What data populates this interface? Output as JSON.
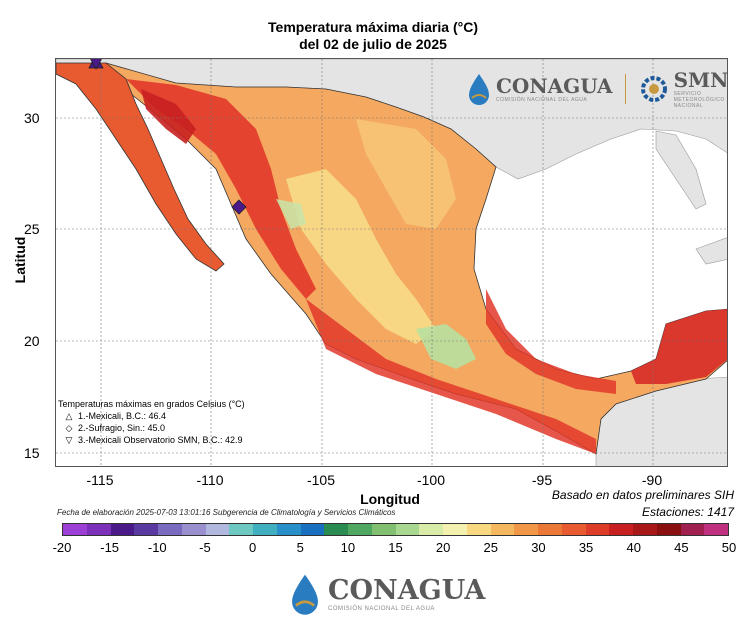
{
  "title_line1": "Temperatura máxima diaria (°C)",
  "title_line2": "del 02 de julio de 2025",
  "axes": {
    "xlabel": "Longitud",
    "ylabel": "Latitud",
    "xticks": [
      "-115",
      "-110",
      "-105",
      "-100",
      "-95",
      "-90"
    ],
    "yticks": [
      "30",
      "25",
      "20",
      "15"
    ],
    "xlim": [
      -117.5,
      -87.0
    ],
    "ylim": [
      14.3,
      32.8
    ]
  },
  "legend": {
    "heading": "Temperaturas máximas en grados Celsius (°C)",
    "items": [
      {
        "symbol": "△",
        "text": "1.-Mexicali, B.C.: 46.4"
      },
      {
        "symbol": "◇",
        "text": "2.-Sufragio, Sin.: 45.0"
      },
      {
        "symbol": "▽",
        "text": "3.-Mexicali Observatorio SMN, B.C.: 42.9"
      }
    ]
  },
  "basado": "Basado en datos preliminares SIH",
  "estaciones": "Estaciones:  1417",
  "fecha": "Fecha de elaboración 2025-07-03 13:01:16 Subgerencia de Climatología y Servicios Climáticos",
  "colorbar": {
    "labels": [
      "-20",
      "-15",
      "-10",
      "-5",
      "0",
      "5",
      "10",
      "15",
      "20",
      "25",
      "30",
      "35",
      "40",
      "45",
      "50"
    ],
    "colors": [
      "#9b3fd6",
      "#7c2fb8",
      "#4a1a8a",
      "#5a3aa0",
      "#7a6ac0",
      "#9a90d0",
      "#b0b8e0",
      "#6cc8c0",
      "#40b0c0",
      "#2890c8",
      "#1a70c0",
      "#2a8c50",
      "#50a860",
      "#80c070",
      "#a8d890",
      "#d8eca8",
      "#f4f0b0",
      "#f8d880",
      "#f4b860",
      "#f09848",
      "#ec7838",
      "#e85a30",
      "#dc3c28",
      "#c82020",
      "#a81818",
      "#8a1010",
      "#a02050",
      "#c03080"
    ]
  },
  "markers": [
    {
      "name": "Mexicali",
      "lon": -115.45,
      "lat": 32.62,
      "shape": "triangle-up"
    },
    {
      "name": "Sufragio",
      "lon": -108.9,
      "lat": 25.97,
      "shape": "diamond"
    },
    {
      "name": "Mexicali Observatorio SMN",
      "lon": -115.5,
      "lat": 32.55,
      "shape": "triangle-down"
    }
  ],
  "logos": {
    "top_conagua": "CONAGUA",
    "top_conagua_sub": "COMISIÓN NACIONAL DEL AGUA",
    "top_smn": "SMN",
    "top_smn_sub": "SERVICIO METEOROLÓGICO NACIONAL",
    "bottom_conagua": "CONAGUA",
    "bottom_conagua_sub": "COMISIÓN NACIONAL DEL AGUA"
  },
  "colors": {
    "land_gray": "#e4e4e4",
    "ocean": "#ffffff",
    "hot": "#e2382a",
    "warm": "#f4a860",
    "mild": "#f8dc88",
    "cool": "#b8e0a0"
  }
}
